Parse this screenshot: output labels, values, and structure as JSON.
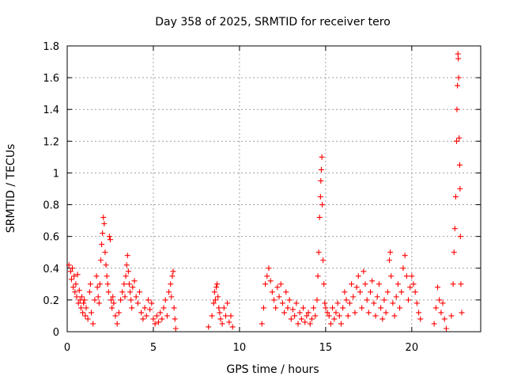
{
  "chart_data": {
    "type": "scatter",
    "title": "Day 358 of 2025, SRMTID for receiver tero",
    "xlabel": "GPS time / hours",
    "ylabel": "SRMTID / TECUs",
    "xlim": [
      0,
      24
    ],
    "ylim": [
      0,
      1.8
    ],
    "x_ticks": [
      0,
      5,
      10,
      15,
      20
    ],
    "x_tick_labels": [
      "0",
      "5",
      "10",
      "15",
      "20"
    ],
    "y_ticks": [
      0,
      0.2,
      0.4,
      0.6,
      0.8,
      1.0,
      1.2,
      1.4,
      1.6,
      1.8
    ],
    "y_tick_labels": [
      "0",
      "0.2",
      "0.4",
      "0.6",
      "0.8",
      "1",
      "1.2",
      "1.4",
      "1.6",
      "1.8"
    ],
    "grid": true,
    "marker": "+",
    "color": "#ff0000",
    "series": [
      {
        "name": "SRMTID",
        "points": [
          [
            0.1,
            0.42
          ],
          [
            0.2,
            0.38
          ],
          [
            0.25,
            0.33
          ],
          [
            0.3,
            0.4
          ],
          [
            0.35,
            0.28
          ],
          [
            0.4,
            0.35
          ],
          [
            0.45,
            0.25
          ],
          [
            0.5,
            0.3
          ],
          [
            0.55,
            0.22
          ],
          [
            0.6,
            0.36
          ],
          [
            0.65,
            0.18
          ],
          [
            0.7,
            0.26
          ],
          [
            0.75,
            0.2
          ],
          [
            0.8,
            0.15
          ],
          [
            0.85,
            0.22
          ],
          [
            0.9,
            0.12
          ],
          [
            0.95,
            0.18
          ],
          [
            1.0,
            0.2
          ],
          [
            1.05,
            0.1
          ],
          [
            1.1,
            0.15
          ],
          [
            1.2,
            0.08
          ],
          [
            1.3,
            0.25
          ],
          [
            1.35,
            0.3
          ],
          [
            1.4,
            0.12
          ],
          [
            1.5,
            0.05
          ],
          [
            1.6,
            0.2
          ],
          [
            1.7,
            0.35
          ],
          [
            1.75,
            0.28
          ],
          [
            1.8,
            0.22
          ],
          [
            1.85,
            0.18
          ],
          [
            1.9,
            0.3
          ],
          [
            1.95,
            0.45
          ],
          [
            2.0,
            0.55
          ],
          [
            2.05,
            0.62
          ],
          [
            2.1,
            0.72
          ],
          [
            2.15,
            0.68
          ],
          [
            2.2,
            0.5
          ],
          [
            2.25,
            0.42
          ],
          [
            2.3,
            0.35
          ],
          [
            2.35,
            0.3
          ],
          [
            2.4,
            0.25
          ],
          [
            2.45,
            0.6
          ],
          [
            2.5,
            0.58
          ],
          [
            2.55,
            0.2
          ],
          [
            2.6,
            0.15
          ],
          [
            2.65,
            0.22
          ],
          [
            2.7,
            0.18
          ],
          [
            2.8,
            0.1
          ],
          [
            2.9,
            0.05
          ],
          [
            3.0,
            0.12
          ],
          [
            3.1,
            0.2
          ],
          [
            3.2,
            0.25
          ],
          [
            3.3,
            0.3
          ],
          [
            3.35,
            0.22
          ],
          [
            3.4,
            0.35
          ],
          [
            3.45,
            0.42
          ],
          [
            3.5,
            0.48
          ],
          [
            3.55,
            0.38
          ],
          [
            3.6,
            0.3
          ],
          [
            3.65,
            0.25
          ],
          [
            3.7,
            0.2
          ],
          [
            3.75,
            0.15
          ],
          [
            3.8,
            0.28
          ],
          [
            3.9,
            0.32
          ],
          [
            4.0,
            0.22
          ],
          [
            4.1,
            0.18
          ],
          [
            4.2,
            0.25
          ],
          [
            4.3,
            0.12
          ],
          [
            4.4,
            0.08
          ],
          [
            4.5,
            0.15
          ],
          [
            4.6,
            0.1
          ],
          [
            4.7,
            0.2
          ],
          [
            4.8,
            0.14
          ],
          [
            4.9,
            0.18
          ],
          [
            5.0,
            0.08
          ],
          [
            5.1,
            0.05
          ],
          [
            5.2,
            0.1
          ],
          [
            5.3,
            0.06
          ],
          [
            5.4,
            0.12
          ],
          [
            5.5,
            0.08
          ],
          [
            5.6,
            0.15
          ],
          [
            5.7,
            0.2
          ],
          [
            5.8,
            0.1
          ],
          [
            5.9,
            0.25
          ],
          [
            6.0,
            0.3
          ],
          [
            6.05,
            0.22
          ],
          [
            6.1,
            0.35
          ],
          [
            6.15,
            0.38
          ],
          [
            6.2,
            0.15
          ],
          [
            6.25,
            0.08
          ],
          [
            6.3,
            0.02
          ],
          [
            8.2,
            0.03
          ],
          [
            8.4,
            0.1
          ],
          [
            8.5,
            0.18
          ],
          [
            8.55,
            0.25
          ],
          [
            8.6,
            0.2
          ],
          [
            8.65,
            0.28
          ],
          [
            8.7,
            0.3
          ],
          [
            8.75,
            0.22
          ],
          [
            8.8,
            0.15
          ],
          [
            8.85,
            0.12
          ],
          [
            8.9,
            0.08
          ],
          [
            9.0,
            0.05
          ],
          [
            9.1,
            0.15
          ],
          [
            9.2,
            0.1
          ],
          [
            9.3,
            0.18
          ],
          [
            9.4,
            0.06
          ],
          [
            9.5,
            0.1
          ],
          [
            9.6,
            0.03
          ],
          [
            11.3,
            0.05
          ],
          [
            11.4,
            0.15
          ],
          [
            11.5,
            0.3
          ],
          [
            11.6,
            0.35
          ],
          [
            11.7,
            0.4
          ],
          [
            11.8,
            0.32
          ],
          [
            11.9,
            0.25
          ],
          [
            12.0,
            0.2
          ],
          [
            12.1,
            0.15
          ],
          [
            12.2,
            0.28
          ],
          [
            12.3,
            0.22
          ],
          [
            12.4,
            0.3
          ],
          [
            12.5,
            0.18
          ],
          [
            12.6,
            0.12
          ],
          [
            12.7,
            0.25
          ],
          [
            12.8,
            0.15
          ],
          [
            12.9,
            0.2
          ],
          [
            13.0,
            0.08
          ],
          [
            13.1,
            0.14
          ],
          [
            13.2,
            0.1
          ],
          [
            13.3,
            0.18
          ],
          [
            13.4,
            0.05
          ],
          [
            13.5,
            0.12
          ],
          [
            13.6,
            0.08
          ],
          [
            13.7,
            0.15
          ],
          [
            13.8,
            0.06
          ],
          [
            13.9,
            0.1
          ],
          [
            14.0,
            0.12
          ],
          [
            14.1,
            0.05
          ],
          [
            14.2,
            0.08
          ],
          [
            14.3,
            0.15
          ],
          [
            14.4,
            0.1
          ],
          [
            14.5,
            0.2
          ],
          [
            14.55,
            0.35
          ],
          [
            14.6,
            0.5
          ],
          [
            14.65,
            0.72
          ],
          [
            14.7,
            0.85
          ],
          [
            14.72,
            0.95
          ],
          [
            14.75,
            1.02
          ],
          [
            14.78,
            1.1
          ],
          [
            14.8,
            0.8
          ],
          [
            14.85,
            0.45
          ],
          [
            14.9,
            0.3
          ],
          [
            14.95,
            0.18
          ],
          [
            15.0,
            0.15
          ],
          [
            15.1,
            0.12
          ],
          [
            15.2,
            0.1
          ],
          [
            15.3,
            0.05
          ],
          [
            15.4,
            0.15
          ],
          [
            15.5,
            0.08
          ],
          [
            15.6,
            0.12
          ],
          [
            15.7,
            0.18
          ],
          [
            15.8,
            0.1
          ],
          [
            15.9,
            0.05
          ],
          [
            16.0,
            0.15
          ],
          [
            16.1,
            0.25
          ],
          [
            16.2,
            0.2
          ],
          [
            16.3,
            0.1
          ],
          [
            16.4,
            0.18
          ],
          [
            16.5,
            0.3
          ],
          [
            16.6,
            0.22
          ],
          [
            16.7,
            0.12
          ],
          [
            16.8,
            0.28
          ],
          [
            16.9,
            0.35
          ],
          [
            17.0,
            0.25
          ],
          [
            17.1,
            0.15
          ],
          [
            17.2,
            0.38
          ],
          [
            17.3,
            0.3
          ],
          [
            17.4,
            0.2
          ],
          [
            17.5,
            0.12
          ],
          [
            17.6,
            0.25
          ],
          [
            17.7,
            0.32
          ],
          [
            17.8,
            0.18
          ],
          [
            17.9,
            0.1
          ],
          [
            18.0,
            0.22
          ],
          [
            18.1,
            0.3
          ],
          [
            18.2,
            0.15
          ],
          [
            18.3,
            0.08
          ],
          [
            18.4,
            0.2
          ],
          [
            18.5,
            0.12
          ],
          [
            18.6,
            0.25
          ],
          [
            18.7,
            0.45
          ],
          [
            18.75,
            0.5
          ],
          [
            18.8,
            0.35
          ],
          [
            18.9,
            0.18
          ],
          [
            19.0,
            0.1
          ],
          [
            19.1,
            0.22
          ],
          [
            19.2,
            0.3
          ],
          [
            19.3,
            0.15
          ],
          [
            19.4,
            0.25
          ],
          [
            19.5,
            0.4
          ],
          [
            19.6,
            0.48
          ],
          [
            19.7,
            0.35
          ],
          [
            19.8,
            0.2
          ],
          [
            19.9,
            0.28
          ],
          [
            20.0,
            0.35
          ],
          [
            20.1,
            0.3
          ],
          [
            20.2,
            0.25
          ],
          [
            20.3,
            0.18
          ],
          [
            20.4,
            0.12
          ],
          [
            20.5,
            0.08
          ],
          [
            21.3,
            0.05
          ],
          [
            21.4,
            0.15
          ],
          [
            21.5,
            0.28
          ],
          [
            21.6,
            0.2
          ],
          [
            21.7,
            0.12
          ],
          [
            21.8,
            0.18
          ],
          [
            21.9,
            0.08
          ],
          [
            22.0,
            0.02
          ],
          [
            22.3,
            0.1
          ],
          [
            22.4,
            0.3
          ],
          [
            22.45,
            0.5
          ],
          [
            22.5,
            0.65
          ],
          [
            22.55,
            0.85
          ],
          [
            22.6,
            1.2
          ],
          [
            22.62,
            1.4
          ],
          [
            22.65,
            1.55
          ],
          [
            22.68,
            1.75
          ],
          [
            22.7,
            1.72
          ],
          [
            22.72,
            1.6
          ],
          [
            22.75,
            1.22
          ],
          [
            22.78,
            1.05
          ],
          [
            22.8,
            0.9
          ],
          [
            22.82,
            0.6
          ],
          [
            22.85,
            0.3
          ],
          [
            22.9,
            0.12
          ]
        ]
      }
    ]
  }
}
